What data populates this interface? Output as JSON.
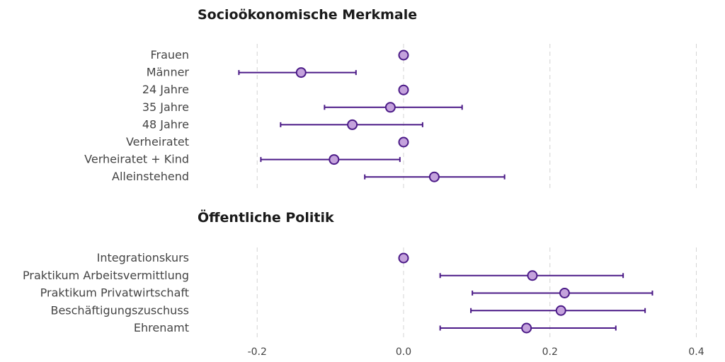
{
  "chart_data": {
    "type": "scatter",
    "subtype": "coefficient-plot",
    "xlim": [
      -0.25,
      0.4
    ],
    "x_ticks": [
      -0.2,
      0.0,
      0.2,
      0.4
    ],
    "x_tick_labels": [
      "-0.2",
      "0.0",
      "0.2",
      "0.4"
    ],
    "grid": "vertical dashed",
    "colors": {
      "point_fill": "#c4a2dc",
      "line": "#4b1a87"
    },
    "panels": [
      {
        "title": "Socioökonomische Merkmale",
        "items": [
          {
            "label": "Frauen",
            "est": 0.0,
            "lo": null,
            "hi": null
          },
          {
            "label": "Männer",
            "est": -0.14,
            "lo": -0.225,
            "hi": -0.065
          },
          {
            "label": "24 Jahre",
            "est": 0.0,
            "lo": null,
            "hi": null
          },
          {
            "label": "35 Jahre",
            "est": -0.018,
            "lo": -0.108,
            "hi": 0.08
          },
          {
            "label": "48 Jahre",
            "est": -0.07,
            "lo": -0.168,
            "hi": 0.026
          },
          {
            "label": "Verheiratet",
            "est": 0.0,
            "lo": null,
            "hi": null
          },
          {
            "label": "Verheiratet + Kind",
            "est": -0.095,
            "lo": -0.195,
            "hi": -0.005
          },
          {
            "label": "Alleinstehend",
            "est": 0.042,
            "lo": -0.053,
            "hi": 0.138
          }
        ]
      },
      {
        "title": "Öffentliche Politik",
        "items": [
          {
            "label": "Integrationskurs",
            "est": 0.0,
            "lo": null,
            "hi": null
          },
          {
            "label": "Praktikum Arbeitsvermittlung",
            "est": 0.176,
            "lo": 0.05,
            "hi": 0.3
          },
          {
            "label": "Praktikum Privatwirtschaft",
            "est": 0.22,
            "lo": 0.094,
            "hi": 0.34
          },
          {
            "label": "Beschäftigungszuschuss",
            "est": 0.215,
            "lo": 0.092,
            "hi": 0.33
          },
          {
            "label": "Ehrenamt",
            "est": 0.168,
            "lo": 0.05,
            "hi": 0.29
          }
        ]
      }
    ]
  }
}
